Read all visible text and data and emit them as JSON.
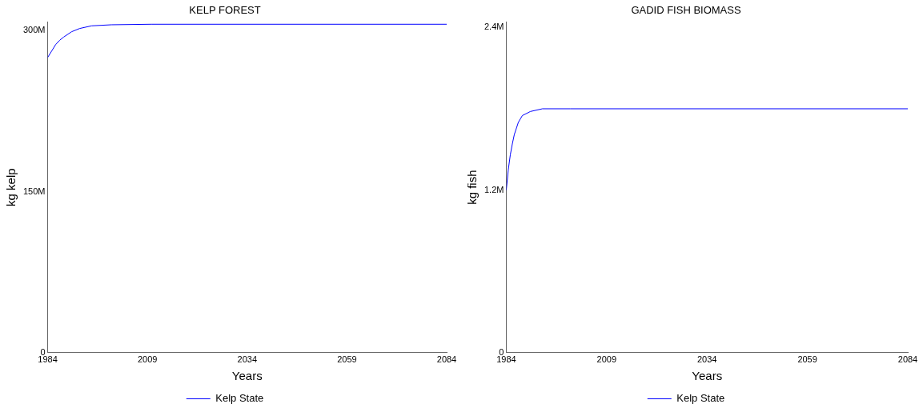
{
  "chart_data": [
    {
      "type": "line",
      "title": "KELP FOREST",
      "xlabel": "Years",
      "ylabel": "kg kelp",
      "marker": "none",
      "legend": "bottom",
      "x": [
        1984,
        1985,
        1986,
        1987,
        1988,
        1990,
        1992,
        1995,
        2000,
        2010,
        2084
      ],
      "series": [
        {
          "name": "Kelp State",
          "color": "#0000ff",
          "values": [
            275000000,
            281000000,
            287000000,
            291000000,
            294000000,
            299000000,
            302000000,
            304500000,
            305500000,
            306000000,
            306000000
          ]
        }
      ],
      "xlim": [
        1984,
        2084
      ],
      "xticks": [
        1984,
        2009,
        2034,
        2059,
        2084
      ],
      "ylim": [
        0,
        308000000
      ],
      "yticks": [
        {
          "value": 0,
          "label": "0"
        },
        {
          "value": 150000000,
          "label": "150M"
        },
        {
          "value": 300000000,
          "label": "300M"
        }
      ]
    },
    {
      "type": "line",
      "title": "GADID FISH BIOMASS",
      "xlabel": "Years",
      "ylabel": "kg fish",
      "marker": "none",
      "legend": "bottom",
      "x": [
        1984,
        1984.5,
        1985,
        1985.5,
        1986,
        1987,
        1988,
        1990,
        1993,
        2000,
        2084
      ],
      "series": [
        {
          "name": "Kelp State",
          "color": "#0000ff",
          "values": [
            1200000,
            1350000,
            1460000,
            1540000,
            1610000,
            1700000,
            1750000,
            1780000,
            1800000,
            1800000,
            1800000
          ]
        }
      ],
      "xlim": [
        1984,
        2084
      ],
      "xticks": [
        1984,
        2009,
        2034,
        2059,
        2084
      ],
      "ylim": [
        0,
        2440000
      ],
      "yticks": [
        {
          "value": 0,
          "label": "0"
        },
        {
          "value": 1200000,
          "label": "1.2M"
        },
        {
          "value": 2400000,
          "label": "2.4M"
        }
      ]
    }
  ]
}
